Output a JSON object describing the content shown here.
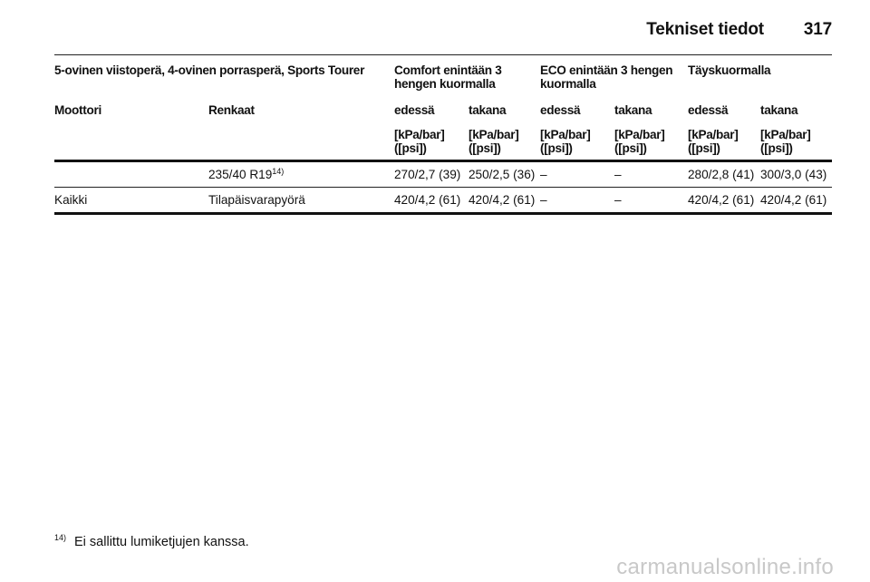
{
  "header": {
    "title": "Tekniset tiedot",
    "page_number": "317"
  },
  "table": {
    "group_header": {
      "vehicle": "5-ovinen viistoperä, 4-ovinen porrasperä, Sports Tourer",
      "comfort": "Comfort enintään 3 hengen kuormalla",
      "eco": "ECO enintään 3 hengen kuormalla",
      "full": "Täyskuormalla"
    },
    "columns": {
      "engine": "Moottori",
      "tyres": "Renkaat",
      "front": "edessä",
      "rear": "takana"
    },
    "unit": "[kPa/bar] ([psi])",
    "rows": [
      {
        "engine": "",
        "tyre": "235/40 R19",
        "tyre_note": "14)",
        "values": [
          "270/2,7 (39)",
          "250/2,5 (36)",
          "–",
          "–",
          "280/2,8 (41)",
          "300/3,0 (43)"
        ]
      },
      {
        "engine": "Kaikki",
        "tyre": "Tilapäisvarapyörä",
        "tyre_note": "",
        "values": [
          "420/4,2 (61)",
          "420/4,2 (61)",
          "–",
          "–",
          "420/4,2 (61)",
          "420/4,2 (61)"
        ]
      }
    ]
  },
  "footnote": {
    "marker": "14)",
    "text": "Ei sallittu lumiketjujen kanssa."
  },
  "watermark": "carmanualsonline.info"
}
